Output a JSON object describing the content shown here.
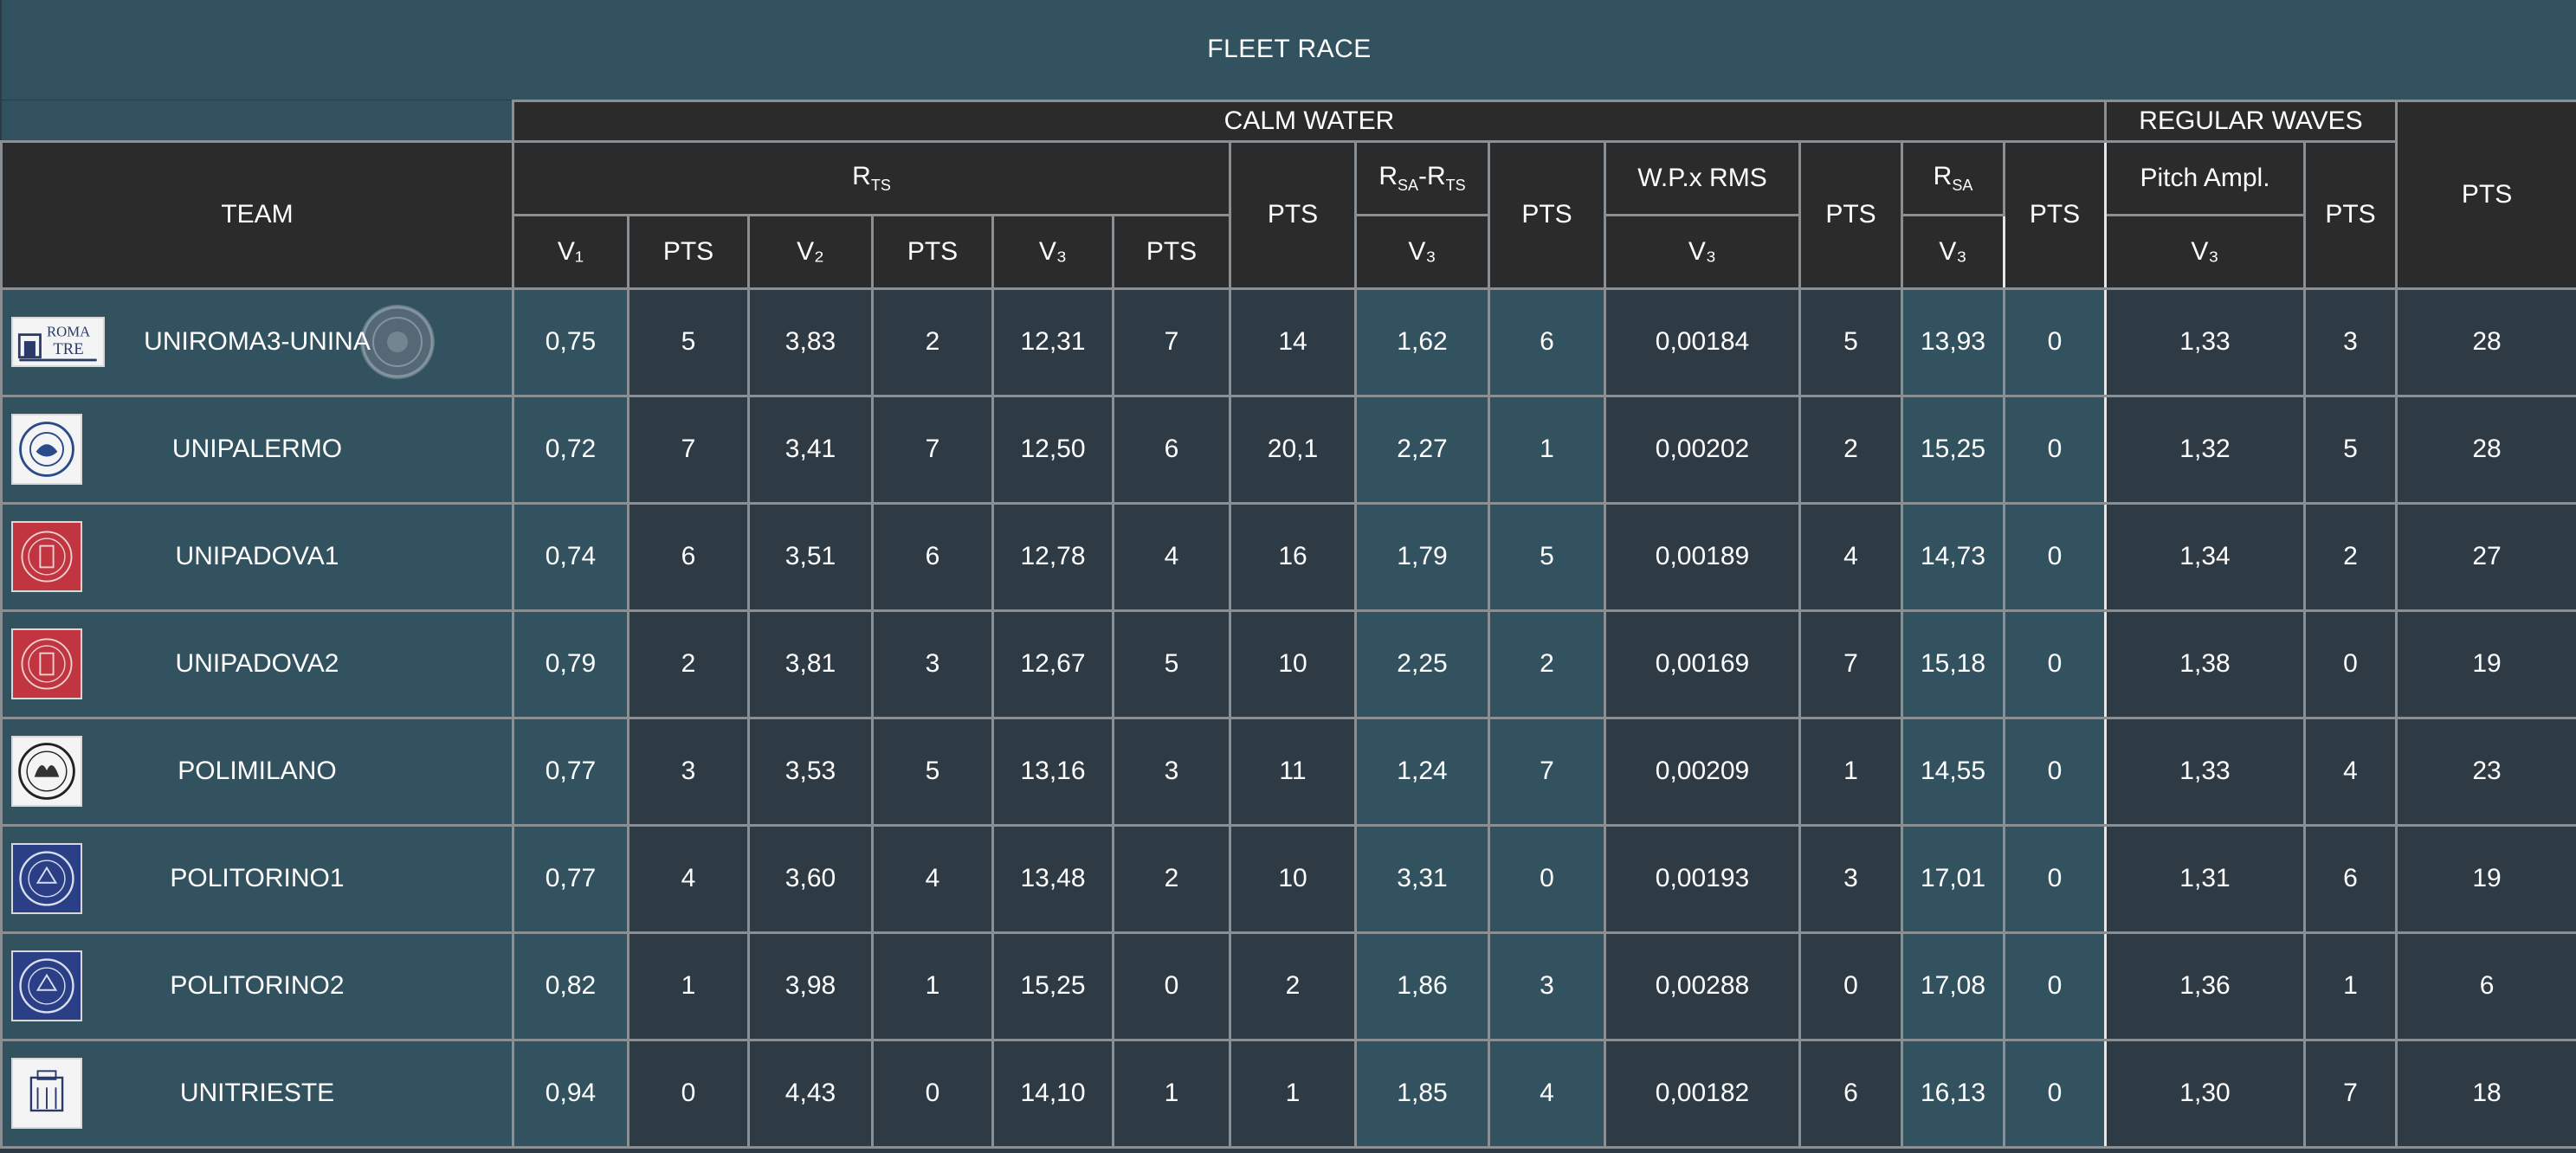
{
  "title": "FLEET RACE",
  "groups": {
    "calm": "CALM WATER",
    "waves": "REGULAR WAVES"
  },
  "headers": {
    "team": "TEAM",
    "rts_main": "R",
    "rts_sub": "TS",
    "rsa_rts_a": "R",
    "rsa_rts_a_sub": "SA",
    "rsa_rts_b": "-R",
    "rsa_rts_b_sub": "TS",
    "wp": "W.P.x RMS",
    "rsa_main": "R",
    "rsa_sub": "SA",
    "pitch": "Pitch Ampl.",
    "pts": "PTS",
    "v1": "V₁",
    "v2": "V₂",
    "v3": "V₃"
  },
  "rows": [
    {
      "team": "UNIROMA3-UNINA",
      "logo": "roma-tre-logo",
      "v1": "0,75",
      "p1": "5",
      "v2": "3,83",
      "p2": "2",
      "v3": "12,31",
      "p3": "7",
      "pts_rts": "14",
      "rsarts": "1,62",
      "p_rsarts": "6",
      "wp": "0,00184",
      "p_wp": "5",
      "rsa": "13,93",
      "p_rsa": "0",
      "pitch": "1,33",
      "p_pitch": "3",
      "total": "28"
    },
    {
      "team": "UNIPALERMO",
      "logo": "palermo-seal-logo",
      "v1": "0,72",
      "p1": "7",
      "v2": "3,41",
      "p2": "7",
      "v3": "12,50",
      "p3": "6",
      "pts_rts": "20,1",
      "rsarts": "2,27",
      "p_rsarts": "1",
      "wp": "0,00202",
      "p_wp": "2",
      "rsa": "15,25",
      "p_rsa": "0",
      "pitch": "1,32",
      "p_pitch": "5",
      "total": "28"
    },
    {
      "team": "UNIPADOVA1",
      "logo": "padova-seal-logo",
      "v1": "0,74",
      "p1": "6",
      "v2": "3,51",
      "p2": "6",
      "v3": "12,78",
      "p3": "4",
      "pts_rts": "16",
      "rsarts": "1,79",
      "p_rsarts": "5",
      "wp": "0,00189",
      "p_wp": "4",
      "rsa": "14,73",
      "p_rsa": "0",
      "pitch": "1,34",
      "p_pitch": "2",
      "total": "27"
    },
    {
      "team": "UNIPADOVA2",
      "logo": "padova-seal-logo",
      "v1": "0,79",
      "p1": "2",
      "v2": "3,81",
      "p2": "3",
      "v3": "12,67",
      "p3": "5",
      "pts_rts": "10",
      "rsarts": "2,25",
      "p_rsarts": "2",
      "wp": "0,00169",
      "p_wp": "7",
      "rsa": "15,18",
      "p_rsa": "0",
      "pitch": "1,38",
      "p_pitch": "0",
      "total": "19"
    },
    {
      "team": "POLIMILANO",
      "logo": "polimi-seal-logo",
      "v1": "0,77",
      "p1": "3",
      "v2": "3,53",
      "p2": "5",
      "v3": "13,16",
      "p3": "3",
      "pts_rts": "11",
      "rsarts": "1,24",
      "p_rsarts": "7",
      "wp": "0,00209",
      "p_wp": "1",
      "rsa": "14,55",
      "p_rsa": "0",
      "pitch": "1,33",
      "p_pitch": "4",
      "total": "23"
    },
    {
      "team": "POLITORINO1",
      "logo": "polito-seal-logo",
      "v1": "0,77",
      "p1": "4",
      "v2": "3,60",
      "p2": "4",
      "v3": "13,48",
      "p3": "2",
      "pts_rts": "10",
      "rsarts": "3,31",
      "p_rsarts": "0",
      "wp": "0,00193",
      "p_wp": "3",
      "rsa": "17,01",
      "p_rsa": "0",
      "pitch": "1,31",
      "p_pitch": "6",
      "total": "19"
    },
    {
      "team": "POLITORINO2",
      "logo": "polito-seal-logo",
      "v1": "0,82",
      "p1": "1",
      "v2": "3,98",
      "p2": "1",
      "v3": "15,25",
      "p3": "0",
      "pts_rts": "2",
      "rsarts": "1,86",
      "p_rsarts": "3",
      "wp": "0,00288",
      "p_wp": "0",
      "rsa": "17,08",
      "p_rsa": "0",
      "pitch": "1,36",
      "p_pitch": "1",
      "total": "6"
    },
    {
      "team": "UNITRIESTE",
      "logo": "trieste-seal-logo",
      "v1": "0,94",
      "p1": "0",
      "v2": "4,43",
      "p2": "0",
      "v3": "14,10",
      "p3": "1",
      "pts_rts": "1",
      "rsarts": "1,85",
      "p_rsarts": "4",
      "wp": "0,00182",
      "p_wp": "6",
      "rsa": "16,13",
      "p_rsa": "0",
      "pitch": "1,30",
      "p_pitch": "7",
      "total": "18"
    }
  ],
  "colors": {
    "teal": "#33525f",
    "dark_cell": "#2e3b45",
    "header": "#2b2b2b",
    "grid": "#8a8f94",
    "text": "#ffffff"
  }
}
